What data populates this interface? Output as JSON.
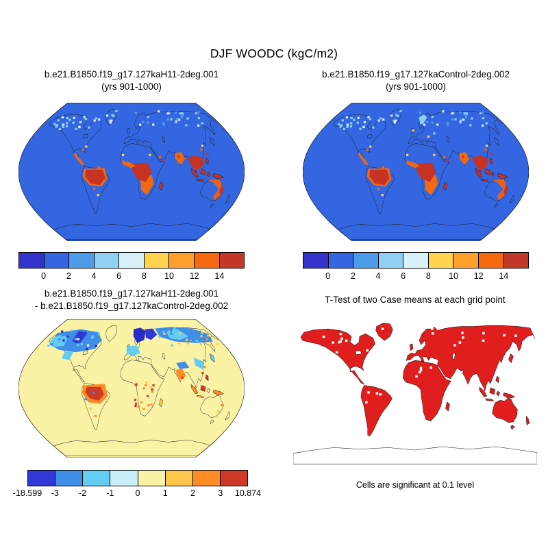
{
  "title": "DJF WOODC (kgC/m2)",
  "panels": {
    "top_left": {
      "line1": "b.e21.B1850.f19_g17.127kaH11-2deg.001",
      "line2": "(yrs 901-1000)"
    },
    "top_right": {
      "line1": "b.e21.B1850.f19_g17.127kaControl-2deg.002",
      "line2": "(yrs 901-1000)"
    },
    "bottom_left": {
      "line1": "b.e21.B1850.f19_g17.127kaH11-2deg.001",
      "line2": "- b.e21.B1850.f19_g17.127kaControl-2deg.002"
    },
    "bottom_right": {
      "title": "T-Test of two Case means at each grid point",
      "caption": "Cells are significant at 0.1 level"
    }
  },
  "colorbars": {
    "case": {
      "colors": [
        "#3232CC",
        "#3366E0",
        "#4E9BEA",
        "#8FD0F2",
        "#D8F1FA",
        "#FFD34E",
        "#FFA02E",
        "#F4690F",
        "#C23728"
      ],
      "tick_labels": [
        "0",
        "2",
        "4",
        "6",
        "8",
        "10",
        "12",
        "14"
      ]
    },
    "diff": {
      "colors": [
        "#3039D8",
        "#3E8EE8",
        "#62CCF2",
        "#C9EDFA",
        "#FAF3A6",
        "#FFC84D",
        "#FF8C26",
        "#CE3A28"
      ],
      "tick_labels": [
        "-18.599",
        "-3",
        "-2",
        "-1",
        "0",
        "1",
        "2",
        "3",
        "10.874"
      ]
    }
  },
  "map_colors": {
    "case_base": "#3366E0",
    "diff_base": "#FAF3A6",
    "ttest_significant": "#E11E1E",
    "coastline": "#1A1A1A"
  },
  "chart_data": {
    "type": "heatmap",
    "title": "DJF WOODC (kgC/m2)",
    "variable": "WOODC",
    "season": "DJF",
    "units": "kgC/m2",
    "panels": [
      {
        "position": "top-left",
        "title": "b.e21.B1850.f19_g17.127kaH11-2deg.001",
        "subtitle": "(yrs 901-1000)",
        "projection": "robinson",
        "colorbar_ticks": [
          0,
          2,
          4,
          6,
          8,
          10,
          12,
          14
        ]
      },
      {
        "position": "top-right",
        "title": "b.e21.B1850.f19_g17.127kaControl-2deg.002",
        "subtitle": "(yrs 901-1000)",
        "projection": "robinson",
        "colorbar_ticks": [
          0,
          2,
          4,
          6,
          8,
          10,
          12,
          14
        ]
      },
      {
        "position": "bottom-left",
        "title": "b.e21.B1850.f19_g17.127kaH11-2deg.001 - b.e21.B1850.f19_g17.127kaControl-2deg.002",
        "projection": "robinson",
        "colorbar_ticks": [
          -18.599,
          -3,
          -2,
          -1,
          0,
          1,
          2,
          3,
          10.874
        ],
        "range_min": -18.599,
        "range_max": 10.874
      },
      {
        "position": "bottom-right",
        "title": "T-Test of two Case means at each grid point",
        "note": "Cells are significant at 0.1 level",
        "significance_level": 0.1
      }
    ]
  }
}
